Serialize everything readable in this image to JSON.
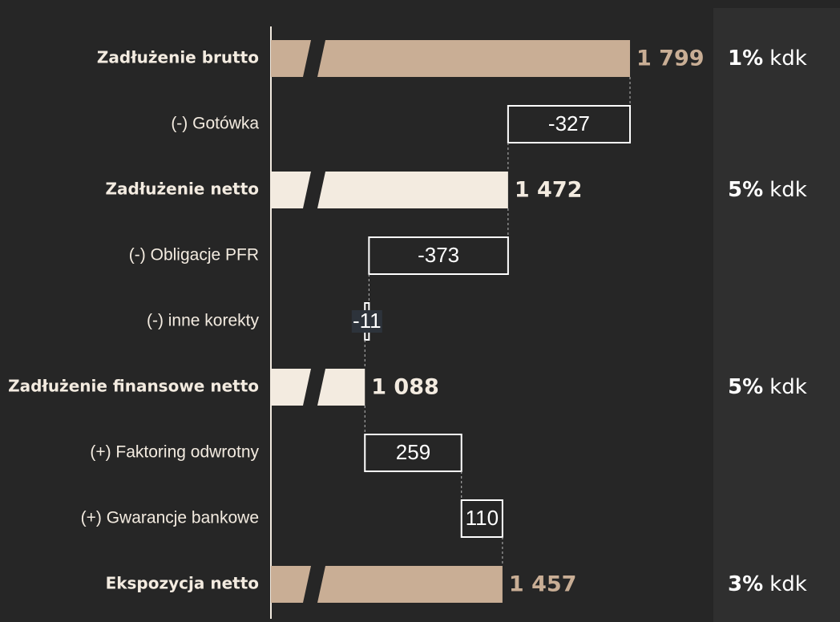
{
  "chart_data": {
    "type": "waterfall",
    "categories": [
      "Zadłużenie brutto",
      "(-) Gotówka",
      "Zadłużenie netto",
      "(-) Obligacje PFR",
      "(-) inne korekty",
      "Zadłużenie finansowe netto",
      "(+) Faktoring odwrotny",
      "(+) Gwarancje bankowe",
      "Ekspozycja netto"
    ],
    "kinds": [
      "total",
      "delta",
      "total",
      "delta",
      "delta",
      "total",
      "delta",
      "delta",
      "total"
    ],
    "values": [
      1799,
      -327,
      1472,
      -373,
      -11,
      1088,
      259,
      110,
      1457
    ],
    "value_labels": [
      "1 799",
      "-327",
      "1 472",
      "-373",
      "-11",
      "1 088",
      "259",
      "110",
      "1 457"
    ],
    "colors": [
      "#c9ae95",
      null,
      "#f3ebe0",
      null,
      null,
      "#f3ebe0",
      null,
      null,
      "#c9ae95"
    ],
    "kdk_share": [
      "1%",
      null,
      "5%",
      null,
      null,
      "5%",
      null,
      null,
      "3%"
    ],
    "kdk_unit": "kdk",
    "xlim": [
      836,
      1900
    ],
    "axis_break": true
  }
}
